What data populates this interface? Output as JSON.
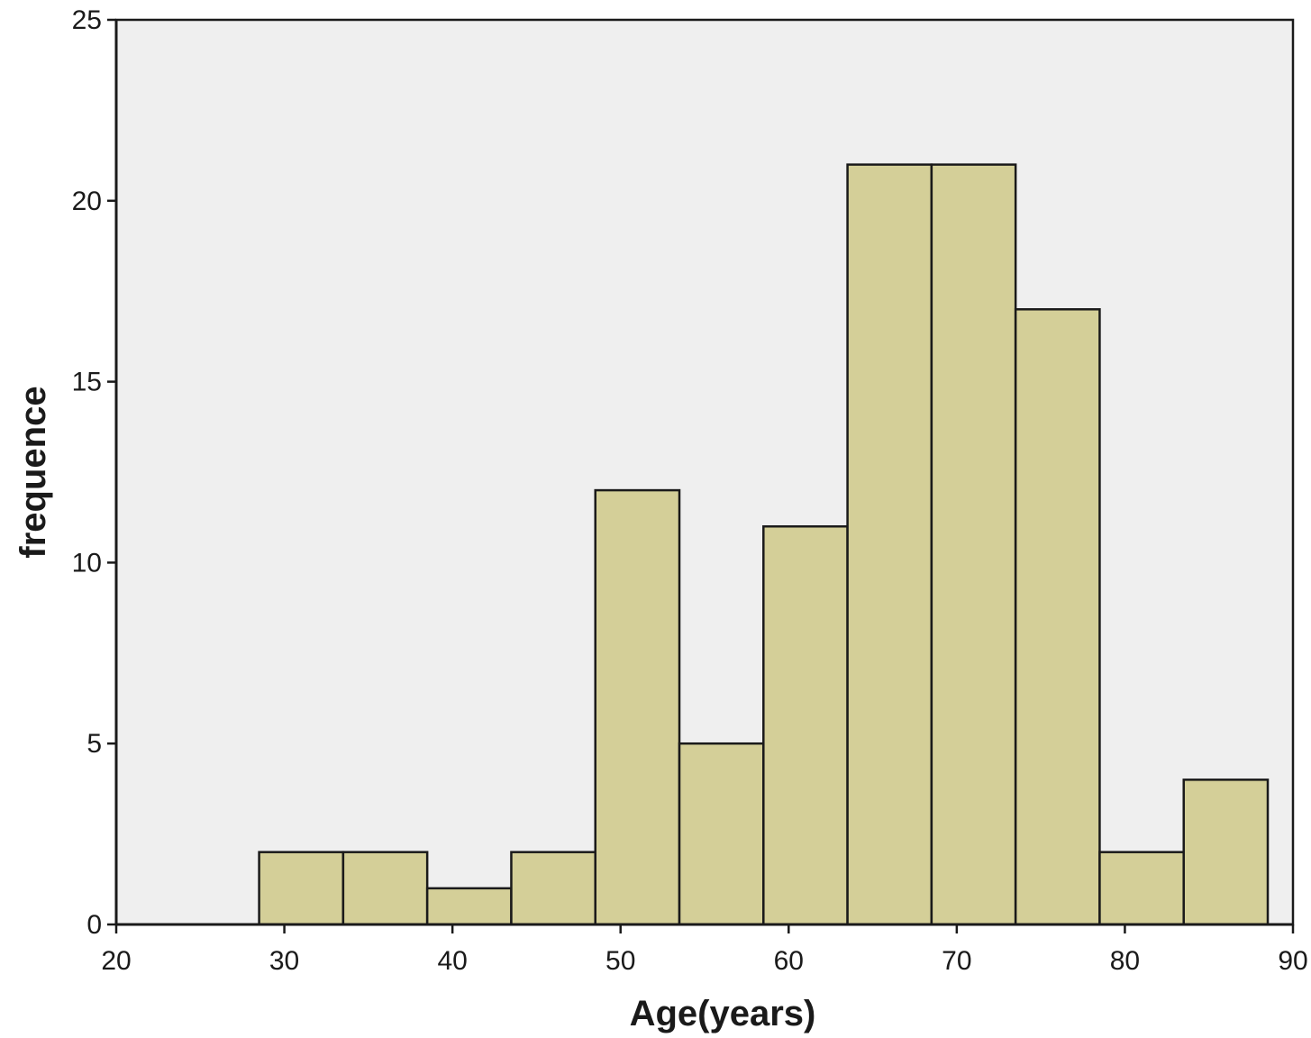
{
  "chart_data": {
    "type": "bar",
    "title": "",
    "xlabel": "Age(years)",
    "ylabel": "frequence",
    "xlim": [
      20,
      90
    ],
    "ylim": [
      0,
      25
    ],
    "x_ticks": [
      "20",
      "30",
      "40",
      "50",
      "60",
      "70",
      "80",
      "90"
    ],
    "y_ticks": [
      "0",
      "5",
      "10",
      "15",
      "20",
      "25"
    ],
    "bin_width": 5,
    "bins": [
      {
        "start": 28.5,
        "end": 33.5,
        "value": 2
      },
      {
        "start": 33.5,
        "end": 38.5,
        "value": 2
      },
      {
        "start": 38.5,
        "end": 43.5,
        "value": 1
      },
      {
        "start": 43.5,
        "end": 48.5,
        "value": 2
      },
      {
        "start": 48.5,
        "end": 53.5,
        "value": 12
      },
      {
        "start": 53.5,
        "end": 58.5,
        "value": 5
      },
      {
        "start": 58.5,
        "end": 63.5,
        "value": 11
      },
      {
        "start": 63.5,
        "end": 68.5,
        "value": 21
      },
      {
        "start": 68.5,
        "end": 73.5,
        "value": 21
      },
      {
        "start": 73.5,
        "end": 78.5,
        "value": 17
      },
      {
        "start": 78.5,
        "end": 83.5,
        "value": 2
      },
      {
        "start": 83.5,
        "end": 88.5,
        "value": 4
      }
    ],
    "grid": false,
    "legend": "none",
    "colors": {
      "bar_fill": "#d4cf98",
      "bar_stroke": "#1a1a1a",
      "plot_background": "#efefef"
    }
  }
}
